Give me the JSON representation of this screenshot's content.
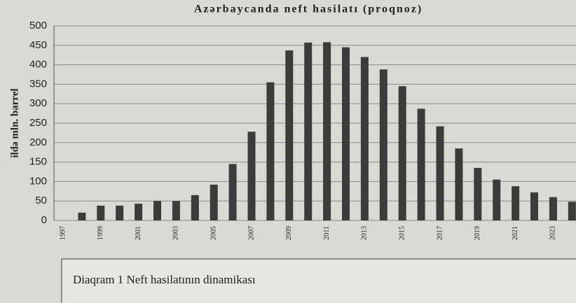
{
  "chart_data": {
    "type": "bar",
    "title": "Azərbaycanda neft hasilatı (proqnoz)",
    "y_label": "ildə mln. barrel",
    "caption": "Diaqram 1  Neft hasilatının dinamikası",
    "categories": [
      "1997",
      null,
      "1999",
      null,
      "2001",
      null,
      "2003",
      null,
      "2005",
      null,
      "2007",
      null,
      "2009",
      null,
      "2011",
      null,
      "2013",
      null,
      "2015",
      null,
      "2017",
      null,
      "2019",
      null,
      "2021",
      null,
      "2023",
      null
    ],
    "values": [
      0,
      20,
      38,
      38,
      43,
      50,
      50,
      65,
      92,
      145,
      228,
      355,
      437,
      457,
      458,
      445,
      420,
      388,
      345,
      287,
      242,
      185,
      135,
      105,
      88,
      72,
      60,
      48
    ],
    "color": "#3b3b3b",
    "ylim": [
      0,
      500
    ],
    "yticks": [
      0,
      50,
      100,
      150,
      200,
      250,
      300,
      350,
      400,
      450,
      500
    ],
    "grid": true
  }
}
